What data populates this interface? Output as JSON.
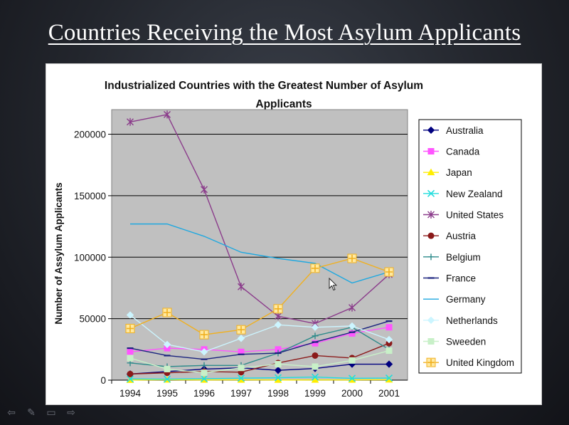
{
  "slide": {
    "title": "Countries Receiving the Most Asylum Applicants"
  },
  "controls": {
    "prev": "⇦",
    "pen": "✎",
    "menu": "▭",
    "next": "⇨"
  },
  "chart_data": {
    "type": "line",
    "title": "Industrialized Countries with the Greatest Number of Asylum Applicants",
    "ylabel": "Number of Assylum Applicants",
    "xlabel": "",
    "x": [
      "1994",
      "1995",
      "1996",
      "1997",
      "1998",
      "1999",
      "2000",
      "2001"
    ],
    "ylim": [
      0,
      220000
    ],
    "yticks": [
      0,
      50000,
      100000,
      150000,
      200000
    ],
    "ytick_labels": [
      "0",
      "50000",
      "100000",
      "150000",
      "200000"
    ],
    "grid": true,
    "legend_position": "right",
    "plot_background": "#c0c0c0",
    "series": [
      {
        "name": "Australia",
        "color": "#00007f",
        "marker": "diamond",
        "values": [
          5000,
          7000,
          9000,
          10000,
          8000,
          9500,
          13000,
          13000
        ]
      },
      {
        "name": "Canada",
        "color": "#ff55ff",
        "marker": "square",
        "values": [
          23000,
          26000,
          25000,
          23000,
          25000,
          30000,
          38000,
          43000
        ]
      },
      {
        "name": "Japan",
        "color": "#ffee00",
        "marker": "triangle",
        "values": [
          100,
          300,
          200,
          250,
          150,
          200,
          200,
          350
        ]
      },
      {
        "name": "New Zealand",
        "color": "#22dddd",
        "marker": "x",
        "values": [
          1000,
          800,
          1200,
          1600,
          2000,
          2500,
          1500,
          1700
        ]
      },
      {
        "name": "United States",
        "color": "#8b3c8b",
        "marker": "star",
        "values": [
          210000,
          216000,
          155000,
          76000,
          52000,
          46000,
          59000,
          86000
        ]
      },
      {
        "name": "Austria",
        "color": "#8b1a1a",
        "marker": "circle",
        "values": [
          5000,
          6000,
          7000,
          6500,
          14000,
          20000,
          18000,
          30000
        ]
      },
      {
        "name": "Belgium",
        "color": "#2e8b8b",
        "marker": "plus",
        "values": [
          14000,
          11000,
          12000,
          12000,
          22000,
          36000,
          43000,
          25000
        ]
      },
      {
        "name": "France",
        "color": "#1a237e",
        "marker": "dash",
        "values": [
          26000,
          20000,
          17000,
          21000,
          22000,
          31000,
          39000,
          48000
        ]
      },
      {
        "name": "Germany",
        "color": "#1ea8e0",
        "marker": "none",
        "values": [
          127000,
          127000,
          117000,
          104000,
          99000,
          95000,
          79000,
          88000
        ]
      },
      {
        "name": "Netherlands",
        "color": "#ccf5ff",
        "marker": "diamond",
        "values": [
          53000,
          29000,
          23000,
          34000,
          45000,
          43000,
          44000,
          33000
        ]
      },
      {
        "name": "Sweeden",
        "color": "#c8f0c8",
        "marker": "square",
        "values": [
          18000,
          9000,
          6000,
          10000,
          13000,
          11000,
          16000,
          24000
        ]
      },
      {
        "name": "United Kingdom",
        "color": "#f0b020",
        "marker": "plus-box",
        "values": [
          42000,
          55000,
          37000,
          41000,
          58000,
          91000,
          99000,
          88000
        ]
      }
    ]
  }
}
